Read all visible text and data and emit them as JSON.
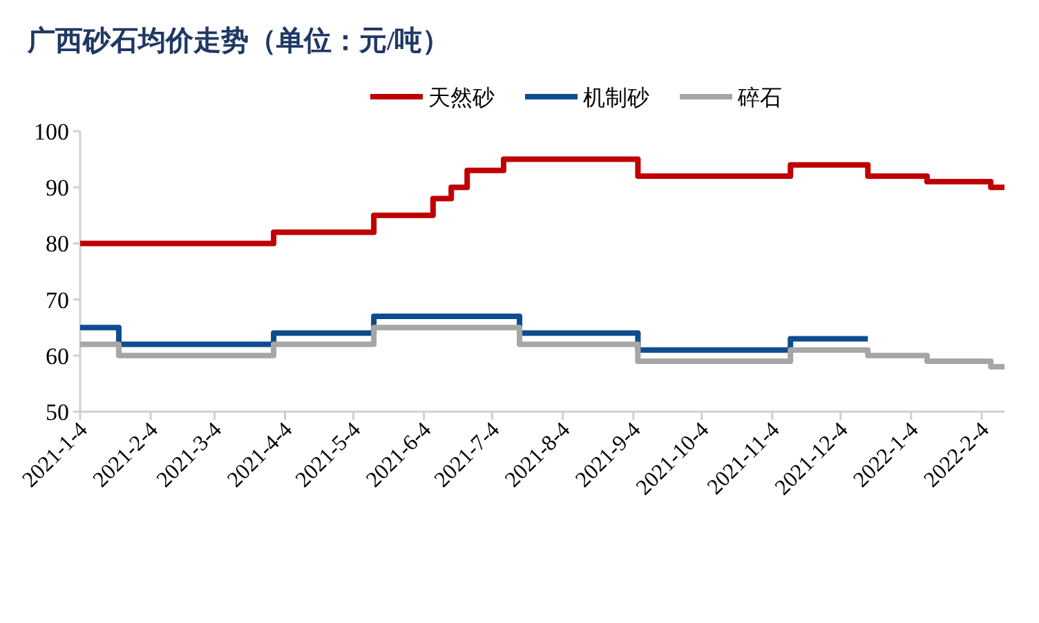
{
  "chart_data": {
    "type": "step",
    "title": "广西砂石均价走势（单位：元/吨）",
    "series": [
      {
        "name": "天然砂",
        "color": "#c00000",
        "x": [
          "2021-01-04",
          "2021-03-30",
          "2021-05-13",
          "2021-06-08",
          "2021-06-16",
          "2021-06-23",
          "2021-07-09",
          "2021-09-06",
          "2021-11-12",
          "2021-12-16",
          "2022-01-11",
          "2022-02-08",
          "2022-02-14"
        ],
        "values": [
          80,
          82,
          85,
          88,
          90,
          93,
          95,
          92,
          94,
          92,
          91,
          90,
          90
        ]
      },
      {
        "name": "机制砂",
        "color": "#0f4c8f",
        "x": [
          "2021-01-04",
          "2021-01-21",
          "2021-03-30",
          "2021-05-13",
          "2021-07-16",
          "2021-09-06",
          "2021-11-12",
          "2021-12-16"
        ],
        "values": [
          65,
          62,
          64,
          67,
          64,
          61,
          63,
          63
        ]
      },
      {
        "name": "碎石",
        "color": "#a6a6a6",
        "x": [
          "2021-01-04",
          "2021-01-21",
          "2021-03-30",
          "2021-05-13",
          "2021-07-16",
          "2021-09-06",
          "2021-11-12",
          "2021-12-16",
          "2022-01-11",
          "2022-02-08",
          "2022-02-14"
        ],
        "values": [
          62,
          60,
          62,
          65,
          62,
          59,
          61,
          60,
          59,
          58,
          58
        ]
      }
    ],
    "xlim": [
      "2021-01-04",
      "2022-02-14"
    ],
    "xticks": [
      {
        "value": "2021-01-04",
        "label": "2021-1-4"
      },
      {
        "value": "2021-02-04",
        "label": "2021-2-4"
      },
      {
        "value": "2021-03-04",
        "label": "2021-3-4"
      },
      {
        "value": "2021-04-04",
        "label": "2021-4-4"
      },
      {
        "value": "2021-05-04",
        "label": "2021-5-4"
      },
      {
        "value": "2021-06-04",
        "label": "2021-6-4"
      },
      {
        "value": "2021-07-04",
        "label": "2021-7-4"
      },
      {
        "value": "2021-08-04",
        "label": "2021-8-4"
      },
      {
        "value": "2021-09-04",
        "label": "2021-9-4"
      },
      {
        "value": "2021-10-04",
        "label": "2021-10-4"
      },
      {
        "value": "2021-11-04",
        "label": "2021-11-4"
      },
      {
        "value": "2021-12-04",
        "label": "2021-12-4"
      },
      {
        "value": "2022-01-04",
        "label": "2022-1-4"
      },
      {
        "value": "2022-02-04",
        "label": "2022-2-4"
      }
    ],
    "ylim": [
      50,
      100
    ],
    "yticks": [
      50,
      60,
      70,
      80,
      90,
      100
    ],
    "grid": false,
    "legend": "top right",
    "marker": "none",
    "line_style": "solid"
  }
}
